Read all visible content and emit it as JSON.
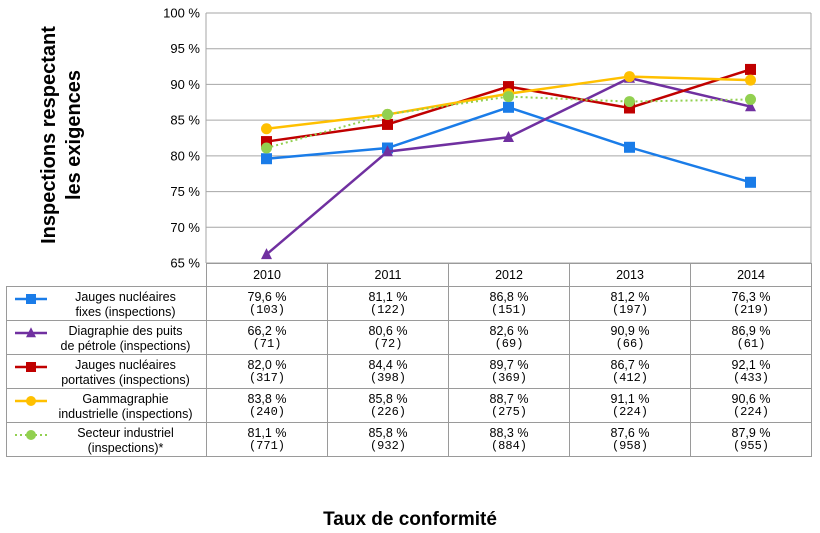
{
  "chart_data": {
    "type": "line",
    "title": "",
    "xlabel": "Taux de conformité",
    "ylabel": "Inspections respectant les exigences",
    "ylim": [
      65,
      100
    ],
    "yticks": [
      "65 %",
      "70 %",
      "75 %",
      "80 %",
      "85 %",
      "90 %",
      "95 %",
      "100 %"
    ],
    "categories": [
      "2010",
      "2011",
      "2012",
      "2013",
      "2014"
    ],
    "grid": true,
    "legend": "data-table-left",
    "series": [
      {
        "name": "Jauges nucléaires fixes (inspections)",
        "color": "#1a7ce8",
        "marker": "square",
        "dash": "solid",
        "values": [
          79.6,
          81.1,
          86.8,
          81.2,
          76.3
        ],
        "labels": [
          "79,6 %",
          "81,1 %",
          "86,8 %",
          "81,2 %",
          "76,3 %"
        ],
        "counts": [
          "(103)",
          "(122)",
          "(151)",
          "(197)",
          "(219)"
        ]
      },
      {
        "name": "Diagraphie des puits de pétrole (inspections)",
        "color": "#7030a0",
        "marker": "triangle",
        "dash": "solid",
        "values": [
          66.2,
          80.6,
          82.6,
          90.9,
          86.9
        ],
        "labels": [
          "66,2 %",
          "80,6 %",
          "82,6 %",
          "90,9 %",
          "86,9 %"
        ],
        "counts": [
          "(71)",
          "(72)",
          "(69)",
          "(66)",
          "(61)"
        ]
      },
      {
        "name": "Jauges nucléaires portatives (inspections)",
        "color": "#c00000",
        "marker": "square",
        "dash": "solid",
        "values": [
          82.0,
          84.4,
          89.7,
          86.7,
          92.1
        ],
        "labels": [
          "82,0 %",
          "84,4 %",
          "89,7 %",
          "86,7 %",
          "92,1 %"
        ],
        "counts": [
          "(317)",
          "(398)",
          "(369)",
          "(412)",
          "(433)"
        ]
      },
      {
        "name": "Gammagraphie industrielle (inspections)",
        "color": "#ffc000",
        "marker": "circle",
        "dash": "solid",
        "values": [
          83.8,
          85.8,
          88.7,
          91.1,
          90.6
        ],
        "labels": [
          "83,8 %",
          "85,8 %",
          "88,7 %",
          "91,1 %",
          "90,6 %"
        ],
        "counts": [
          "(240)",
          "(226)",
          "(275)",
          "(224)",
          "(224)"
        ]
      },
      {
        "name": "Secteur industriel (inspections)*",
        "color": "#92d050",
        "marker": "circle",
        "dash": "dotted",
        "values": [
          81.1,
          85.8,
          88.3,
          87.6,
          87.9
        ],
        "labels": [
          "81,1 %",
          "85,8 %",
          "88,3 %",
          "87,6 %",
          "87,9 %"
        ],
        "counts": [
          "(771)",
          "(932)",
          "(884)",
          "(958)",
          "(955)"
        ]
      }
    ]
  },
  "legend_text": [
    [
      "Jauges nucléaires",
      "fixes (inspections)"
    ],
    [
      "Diagraphie des puits",
      "de pétrole (inspections)"
    ],
    [
      "Jauges nucléaires",
      "portatives (inspections)"
    ],
    [
      "Gammagraphie",
      "industrielle (inspections)"
    ],
    [
      "Secteur industriel",
      "(inspections)*"
    ]
  ],
  "ylabel_lines": [
    "Inspections respectant",
    "les exigences"
  ]
}
